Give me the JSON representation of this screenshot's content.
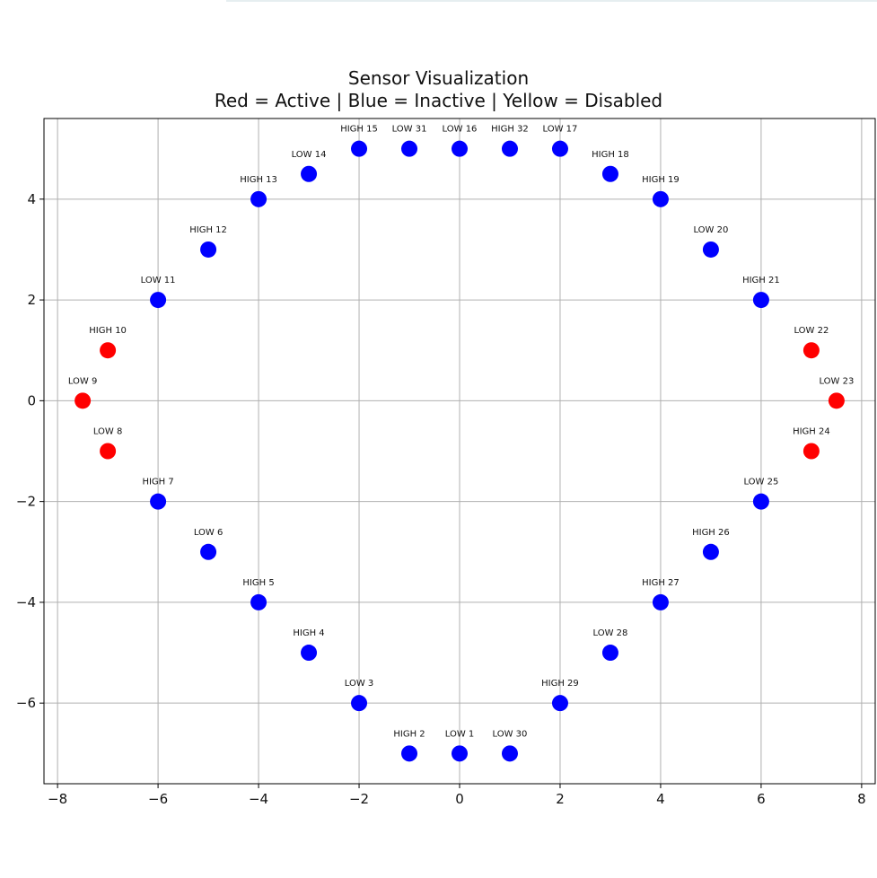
{
  "chart_data": {
    "type": "scatter",
    "title": "Sensor Visualization",
    "subtitle": "Red = Active | Blue = Inactive | Yellow = Disabled",
    "xlabel": "",
    "ylabel": "",
    "xlim": [
      -8.27,
      8.27
    ],
    "ylim": [
      -7.6,
      5.6
    ],
    "x_ticks": [
      -8,
      -6,
      -4,
      -2,
      0,
      2,
      4,
      6,
      8
    ],
    "y_ticks": [
      -6,
      -4,
      -2,
      0,
      2,
      4
    ],
    "grid": true,
    "status_colors": {
      "active": "#ff0000",
      "inactive": "#0000ff",
      "disabled": "#ffff00"
    },
    "points": [
      {
        "label": "LOW 1",
        "x": 0,
        "y": -7,
        "status": "inactive"
      },
      {
        "label": "HIGH 2",
        "x": -1,
        "y": -7,
        "status": "inactive"
      },
      {
        "label": "LOW 3",
        "x": -2,
        "y": -6,
        "status": "inactive"
      },
      {
        "label": "HIGH 4",
        "x": -3,
        "y": -5,
        "status": "inactive"
      },
      {
        "label": "HIGH 5",
        "x": -4,
        "y": -4,
        "status": "inactive"
      },
      {
        "label": "LOW 6",
        "x": -5,
        "y": -3,
        "status": "inactive"
      },
      {
        "label": "HIGH 7",
        "x": -6,
        "y": -2,
        "status": "inactive"
      },
      {
        "label": "LOW 8",
        "x": -7,
        "y": -1,
        "status": "active"
      },
      {
        "label": "LOW 9",
        "x": -7.5,
        "y": 0,
        "status": "active"
      },
      {
        "label": "HIGH 10",
        "x": -7,
        "y": 1,
        "status": "active"
      },
      {
        "label": "LOW 11",
        "x": -6,
        "y": 2,
        "status": "inactive"
      },
      {
        "label": "HIGH 12",
        "x": -5,
        "y": 3,
        "status": "inactive"
      },
      {
        "label": "HIGH 13",
        "x": -4,
        "y": 4,
        "status": "inactive"
      },
      {
        "label": "LOW 14",
        "x": -3,
        "y": 4.5,
        "status": "inactive"
      },
      {
        "label": "HIGH 15",
        "x": -2,
        "y": 5,
        "status": "inactive"
      },
      {
        "label": "LOW 16",
        "x": 0,
        "y": 5,
        "status": "inactive"
      },
      {
        "label": "LOW 17",
        "x": 2,
        "y": 5,
        "status": "inactive"
      },
      {
        "label": "HIGH 18",
        "x": 3,
        "y": 4.5,
        "status": "inactive"
      },
      {
        "label": "HIGH 19",
        "x": 4,
        "y": 4,
        "status": "inactive"
      },
      {
        "label": "LOW 20",
        "x": 5,
        "y": 3,
        "status": "inactive"
      },
      {
        "label": "HIGH 21",
        "x": 6,
        "y": 2,
        "status": "inactive"
      },
      {
        "label": "LOW 22",
        "x": 7,
        "y": 1,
        "status": "active"
      },
      {
        "label": "LOW 23",
        "x": 7.5,
        "y": 0,
        "status": "active"
      },
      {
        "label": "HIGH 24",
        "x": 7,
        "y": -1,
        "status": "active"
      },
      {
        "label": "LOW 25",
        "x": 6,
        "y": -2,
        "status": "inactive"
      },
      {
        "label": "HIGH 26",
        "x": 5,
        "y": -3,
        "status": "inactive"
      },
      {
        "label": "HIGH 27",
        "x": 4,
        "y": -4,
        "status": "inactive"
      },
      {
        "label": "LOW 28",
        "x": 3,
        "y": -5,
        "status": "inactive"
      },
      {
        "label": "HIGH 29",
        "x": 2,
        "y": -6,
        "status": "inactive"
      },
      {
        "label": "LOW 30",
        "x": 1,
        "y": -7,
        "status": "inactive"
      },
      {
        "label": "LOW 31",
        "x": -1,
        "y": 5,
        "status": "inactive"
      },
      {
        "label": "HIGH 32",
        "x": 1,
        "y": 5,
        "status": "inactive"
      }
    ]
  }
}
